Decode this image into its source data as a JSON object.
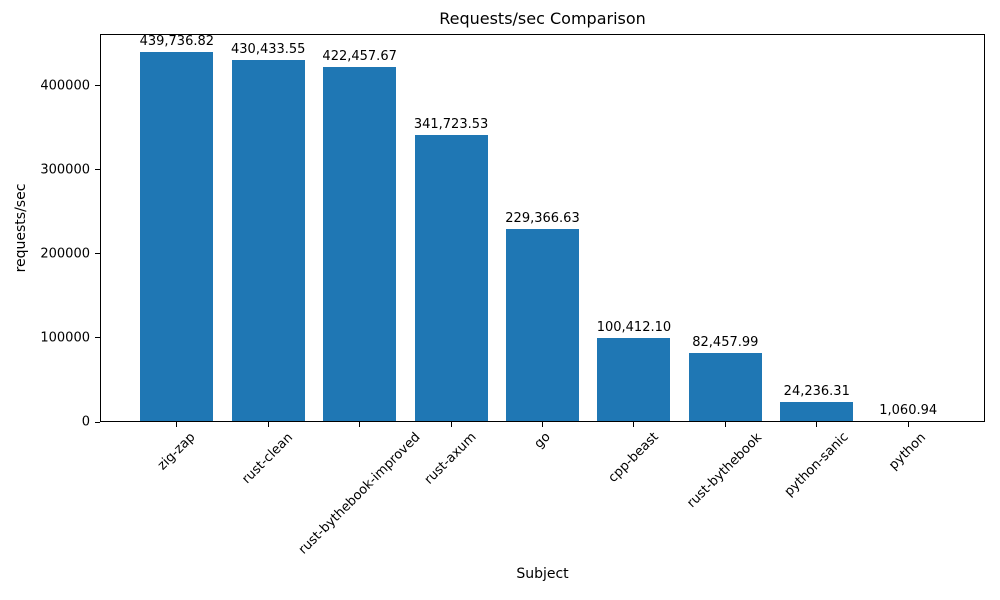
{
  "figure": {
    "background": "#ffffff",
    "text_color": "#000000"
  },
  "chart_data": {
    "type": "bar",
    "title": "Requests/sec Comparison",
    "xlabel": "Subject",
    "ylabel": "requests/sec",
    "categories": [
      "zig-zap",
      "rust-clean",
      "rust-bythebook-improved",
      "rust-axum",
      "go",
      "cpp-beast",
      "rust-bythebook",
      "python-sanic",
      "python"
    ],
    "values": [
      439736.82,
      430433.55,
      422457.67,
      341723.53,
      229366.63,
      100412.1,
      82457.99,
      24236.31,
      1060.94
    ],
    "value_labels": [
      "439,736.82",
      "430,433.55",
      "422,457.67",
      "341,723.53",
      "229,366.63",
      "100,412.10",
      "82,457.99",
      "24,236.31",
      "1,060.94"
    ],
    "bar_color": "#1f77b4",
    "bar_width_fraction": 0.8,
    "ylim": [
      0,
      461724
    ],
    "yticks": [
      0,
      100000,
      200000,
      300000,
      400000
    ],
    "ytick_labels": [
      "0",
      "100000",
      "200000",
      "300000",
      "400000"
    ],
    "xtick_rotation_deg": 45,
    "grid": false,
    "legend": "none"
  }
}
